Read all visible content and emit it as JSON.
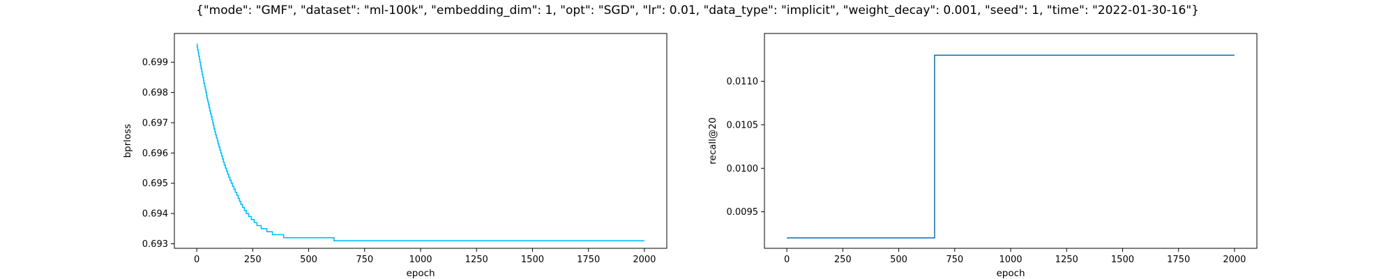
{
  "figure": {
    "title": "{\"mode\": \"GMF\", \"dataset\": \"ml-100k\", \"embedding_dim\": 1, \"opt\": \"SGD\", \"lr\": 0.01, \"data_type\": \"implicit\", \"weight_decay\": 0.001, \"seed\": 1, \"time\": \"2022-01-30-16\"}"
  },
  "chart_data": [
    {
      "type": "line",
      "title": "",
      "xlabel": "epoch",
      "ylabel": "bprloss",
      "xlim": [
        -100,
        2100
      ],
      "ylim": [
        0.69285,
        0.69995
      ],
      "xticks": [
        0,
        250,
        500,
        750,
        1000,
        1250,
        1500,
        1750,
        2000
      ],
      "yticks": [
        0.693,
        0.694,
        0.695,
        0.696,
        0.697,
        0.698,
        0.699
      ],
      "ytick_labels": [
        "0.693",
        "0.694",
        "0.695",
        "0.696",
        "0.697",
        "0.698",
        "0.699"
      ],
      "grid": false,
      "color": "#00bfff",
      "step_precision": 0.0001,
      "series": [
        {
          "x": [
            0,
            25,
            50,
            75,
            100,
            125,
            150,
            175,
            200,
            225,
            250,
            275,
            300,
            325,
            350,
            375,
            400,
            450,
            500,
            550,
            600,
            625,
            700,
            800,
            1000,
            1250,
            1500,
            1750,
            2000
          ],
          "y": [
            0.6996,
            0.6986,
            0.6977,
            0.6969,
            0.6962,
            0.6956,
            0.6951,
            0.6947,
            0.6943,
            0.694,
            0.6938,
            0.6936,
            0.6935,
            0.6934,
            0.6933,
            0.6933,
            0.6932,
            0.6932,
            0.6932,
            0.6932,
            0.6932,
            0.6931,
            0.6931,
            0.6931,
            0.6931,
            0.6931,
            0.6931,
            0.6931,
            0.6931
          ]
        }
      ]
    },
    {
      "type": "line",
      "title": "",
      "xlabel": "epoch",
      "ylabel": "recall@20",
      "xlim": [
        -100,
        2100
      ],
      "ylim": [
        0.00908,
        0.01155
      ],
      "xticks": [
        0,
        250,
        500,
        750,
        1000,
        1250,
        1500,
        1750,
        2000
      ],
      "yticks": [
        0.0095,
        0.01,
        0.0105,
        0.011
      ],
      "ytick_labels": [
        "0.0095",
        "0.0100",
        "0.0105",
        "0.0110"
      ],
      "grid": false,
      "color": "#1f77b4",
      "series": [
        {
          "x": [
            0,
            660,
            660,
            2000
          ],
          "y": [
            0.0092,
            0.0092,
            0.0113,
            0.0113
          ]
        }
      ]
    }
  ]
}
